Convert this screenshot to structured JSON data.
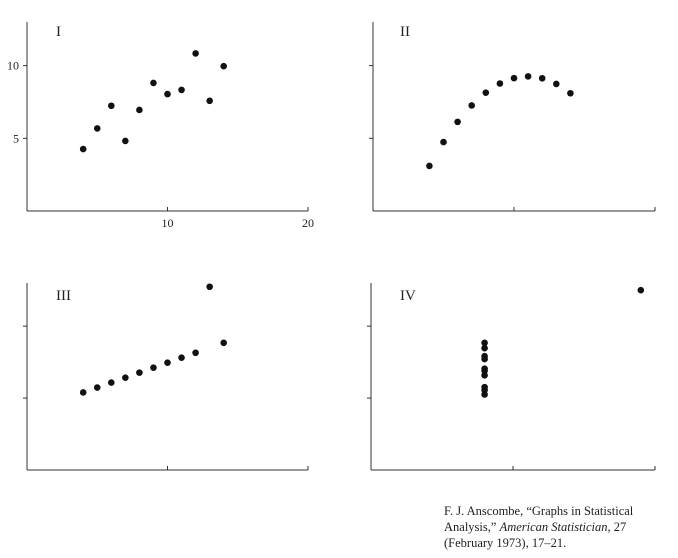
{
  "chart_data": [
    {
      "type": "scatter",
      "title": "I",
      "xlim": [
        0,
        20
      ],
      "ylim": [
        0,
        13
      ],
      "xticks": [
        10,
        20
      ],
      "yticks": [
        5,
        10
      ],
      "xtick_labels": [
        "10",
        "20"
      ],
      "ytick_labels": [
        "5",
        "10"
      ],
      "show_x_tick_labels": true,
      "show_y_tick_labels": true,
      "grid": false,
      "points": [
        [
          4,
          4.26
        ],
        [
          5,
          5.68
        ],
        [
          6,
          7.24
        ],
        [
          7,
          4.82
        ],
        [
          8,
          6.95
        ],
        [
          9,
          8.81
        ],
        [
          10,
          8.04
        ],
        [
          11,
          8.33
        ],
        [
          12,
          10.84
        ],
        [
          13,
          7.58
        ],
        [
          14,
          9.96
        ]
      ]
    },
    {
      "type": "scatter",
      "title": "II",
      "xlim": [
        0,
        20
      ],
      "ylim": [
        0,
        13
      ],
      "xticks": [
        10,
        20
      ],
      "yticks": [
        5,
        10
      ],
      "xtick_labels": [
        "",
        ""
      ],
      "ytick_labels": [
        "",
        ""
      ],
      "show_x_tick_labels": false,
      "show_y_tick_labels": false,
      "grid": false,
      "points": [
        [
          4,
          3.1
        ],
        [
          5,
          4.74
        ],
        [
          6,
          6.13
        ],
        [
          7,
          7.26
        ],
        [
          8,
          8.14
        ],
        [
          9,
          8.77
        ],
        [
          10,
          9.14
        ],
        [
          11,
          9.26
        ],
        [
          12,
          9.13
        ],
        [
          13,
          8.74
        ],
        [
          14,
          8.1
        ]
      ]
    },
    {
      "type": "scatter",
      "title": "III",
      "xlim": [
        0,
        20
      ],
      "ylim": [
        0,
        13
      ],
      "xticks": [
        10,
        20
      ],
      "yticks": [
        5,
        10
      ],
      "xtick_labels": [
        "",
        ""
      ],
      "ytick_labels": [
        "",
        ""
      ],
      "show_x_tick_labels": false,
      "show_y_tick_labels": false,
      "grid": false,
      "points": [
        [
          4,
          5.39
        ],
        [
          5,
          5.73
        ],
        [
          6,
          6.08
        ],
        [
          7,
          6.42
        ],
        [
          8,
          6.77
        ],
        [
          9,
          7.11
        ],
        [
          10,
          7.46
        ],
        [
          11,
          7.81
        ],
        [
          12,
          8.15
        ],
        [
          13,
          12.74
        ],
        [
          14,
          8.84
        ]
      ]
    },
    {
      "type": "scatter",
      "title": "IV",
      "xlim": [
        0,
        20
      ],
      "ylim": [
        0,
        13
      ],
      "xticks": [
        10,
        20
      ],
      "yticks": [
        5,
        10
      ],
      "xtick_labels": [
        "",
        ""
      ],
      "ytick_labels": [
        "",
        ""
      ],
      "show_x_tick_labels": false,
      "show_y_tick_labels": false,
      "grid": false,
      "points": [
        [
          8,
          5.25
        ],
        [
          8,
          5.56
        ],
        [
          8,
          5.76
        ],
        [
          8,
          6.58
        ],
        [
          8,
          6.89
        ],
        [
          8,
          7.04
        ],
        [
          8,
          7.71
        ],
        [
          8,
          7.91
        ],
        [
          8,
          8.47
        ],
        [
          8,
          8.84
        ],
        [
          19,
          12.5
        ]
      ]
    }
  ],
  "citation": {
    "line1": "F. J. Anscombe, “Graphs in Statistical",
    "line2_prefix": "Analysis,” ",
    "line2_journal": "American Statistician",
    "line2_suffix": ", 27",
    "line3": "(February 1973), 17–21."
  }
}
